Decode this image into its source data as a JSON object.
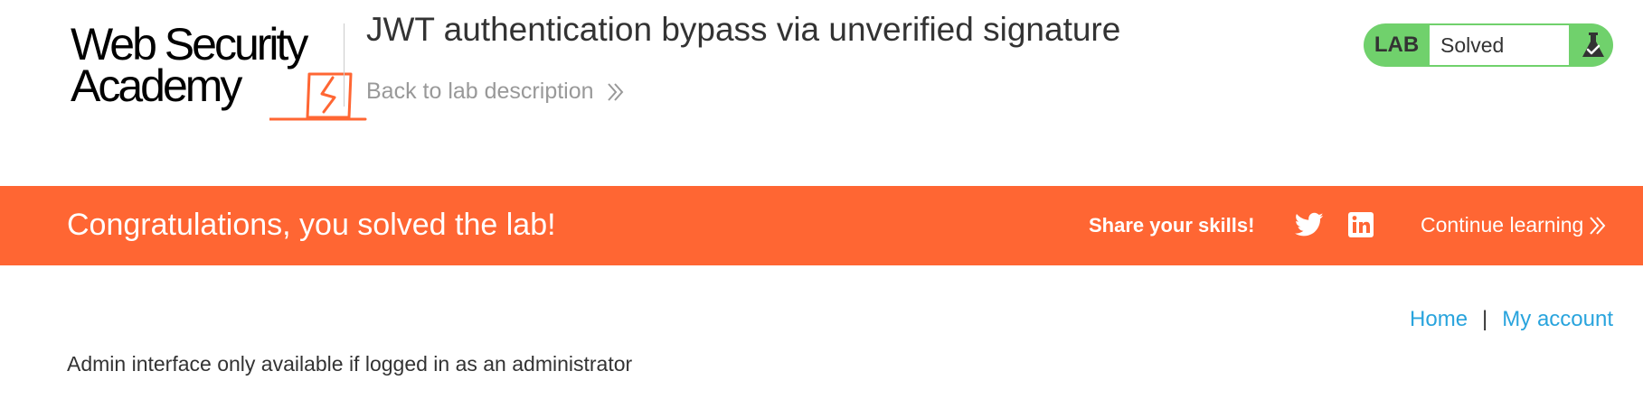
{
  "header": {
    "logo": {
      "line1": "Web Security",
      "line2": "Academy",
      "accent_color": "#ff6633"
    },
    "lab_title": "JWT authentication bypass via unverified signature",
    "back_link": "Back to lab description",
    "lab_status": {
      "tag": "LAB",
      "state": "Solved",
      "color": "#70d16c",
      "icon": "flask-icon"
    }
  },
  "banner": {
    "color": "#ff6633",
    "message": "Congratulations, you solved the lab!",
    "share_label": "Share your skills!",
    "share_icons": [
      "twitter-icon",
      "linkedin-icon"
    ],
    "continue_label": "Continue learning"
  },
  "nav": {
    "home": "Home",
    "separator": "|",
    "my_account": "My account",
    "link_color": "#29a4dd"
  },
  "content": {
    "message": "Admin interface only available if logged in as an administrator"
  }
}
